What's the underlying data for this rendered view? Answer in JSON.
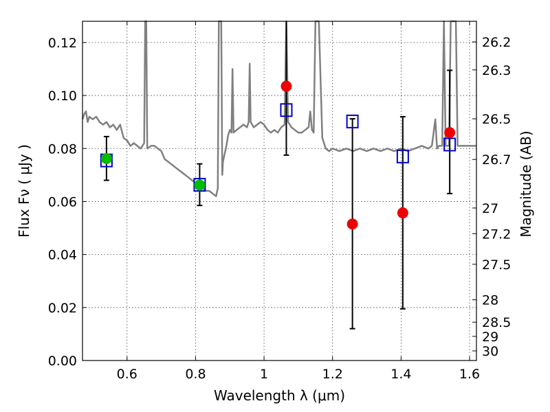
{
  "chart_data": {
    "type": "scatter",
    "xlabel": "Wavelength  λ (μm)",
    "ylabel": "Flux  Fν  ( μJy )",
    "y2label": "Magnitude (AB)",
    "xlim": [
      0.47,
      1.62
    ],
    "ylim": [
      0.0,
      0.128
    ],
    "xticks": [
      "0.6",
      "0.8",
      "1",
      "1.2",
      "1.4",
      "1.6"
    ],
    "xtick_values": [
      0.6,
      0.8,
      1.0,
      1.2,
      1.4,
      1.6
    ],
    "yticks": [
      "0.00",
      "0.02",
      "0.04",
      "0.06",
      "0.08",
      "0.10",
      "0.12"
    ],
    "ytick_values": [
      0.0,
      0.02,
      0.04,
      0.06,
      0.08,
      0.1,
      0.12
    ],
    "mag_ticks": [
      "26.2",
      "26.3",
      "26.5",
      "26.7",
      "27",
      "27.2",
      "27.5",
      "28",
      "28.5",
      "29",
      "30"
    ],
    "mag_tick_values": [
      26.2,
      26.3,
      26.5,
      26.7,
      27.0,
      27.2,
      27.5,
      28.0,
      28.5,
      29.0,
      30.0
    ],
    "grid": true,
    "colors": {
      "sed": "#808080",
      "model": "#0000cc",
      "detection": "#00bb00",
      "upper": "#ee0000",
      "errorbar": "#000000"
    },
    "model_template": [
      [
        0.47,
        0.091
      ],
      [
        0.475,
        0.093
      ],
      [
        0.48,
        0.094
      ],
      [
        0.485,
        0.09
      ],
      [
        0.49,
        0.092
      ],
      [
        0.5,
        0.091
      ],
      [
        0.51,
        0.092
      ],
      [
        0.52,
        0.09
      ],
      [
        0.53,
        0.089
      ],
      [
        0.54,
        0.09
      ],
      [
        0.55,
        0.088
      ],
      [
        0.56,
        0.089
      ],
      [
        0.57,
        0.087
      ],
      [
        0.58,
        0.089
      ],
      [
        0.59,
        0.084
      ],
      [
        0.6,
        0.083
      ],
      [
        0.61,
        0.081
      ],
      [
        0.62,
        0.082
      ],
      [
        0.63,
        0.081
      ],
      [
        0.64,
        0.08
      ],
      [
        0.65,
        0.082
      ],
      [
        0.653,
        0.128
      ],
      [
        0.656,
        0.128
      ],
      [
        0.659,
        0.08
      ],
      [
        0.67,
        0.081
      ],
      [
        0.68,
        0.081
      ],
      [
        0.69,
        0.08
      ],
      [
        0.7,
        0.079
      ],
      [
        0.71,
        0.076
      ],
      [
        0.72,
        0.075
      ],
      [
        0.73,
        0.074
      ],
      [
        0.74,
        0.073
      ],
      [
        0.75,
        0.072
      ],
      [
        0.76,
        0.071
      ],
      [
        0.77,
        0.07
      ],
      [
        0.78,
        0.069
      ],
      [
        0.79,
        0.068
      ],
      [
        0.8,
        0.067
      ],
      [
        0.81,
        0.066
      ],
      [
        0.82,
        0.065
      ],
      [
        0.83,
        0.064
      ],
      [
        0.84,
        0.064
      ],
      [
        0.85,
        0.063
      ],
      [
        0.86,
        0.062
      ],
      [
        0.865,
        0.065
      ],
      [
        0.868,
        0.128
      ],
      [
        0.875,
        0.128
      ],
      [
        0.878,
        0.07
      ],
      [
        0.88,
        0.075
      ],
      [
        0.89,
        0.081
      ],
      [
        0.895,
        0.085
      ],
      [
        0.9,
        0.087
      ],
      [
        0.905,
        0.086
      ],
      [
        0.908,
        0.11
      ],
      [
        0.911,
        0.086
      ],
      [
        0.92,
        0.087
      ],
      [
        0.93,
        0.088
      ],
      [
        0.94,
        0.089
      ],
      [
        0.95,
        0.088
      ],
      [
        0.955,
        0.09
      ],
      [
        0.958,
        0.112
      ],
      [
        0.961,
        0.09
      ],
      [
        0.97,
        0.088
      ],
      [
        0.98,
        0.089
      ],
      [
        0.99,
        0.09
      ],
      [
        1.0,
        0.089
      ],
      [
        1.01,
        0.087
      ],
      [
        1.02,
        0.086
      ],
      [
        1.03,
        0.087
      ],
      [
        1.04,
        0.086
      ],
      [
        1.05,
        0.088
      ],
      [
        1.06,
        0.089
      ],
      [
        1.065,
        0.128
      ],
      [
        1.07,
        0.09
      ],
      [
        1.08,
        0.088
      ],
      [
        1.09,
        0.087
      ],
      [
        1.1,
        0.086
      ],
      [
        1.11,
        0.086
      ],
      [
        1.12,
        0.087
      ],
      [
        1.13,
        0.088
      ],
      [
        1.135,
        0.094
      ],
      [
        1.14,
        0.087
      ],
      [
        1.145,
        0.086
      ],
      [
        1.15,
        0.128
      ],
      [
        1.16,
        0.128
      ],
      [
        1.17,
        0.084
      ],
      [
        1.18,
        0.08
      ],
      [
        1.19,
        0.079
      ],
      [
        1.2,
        0.08
      ],
      [
        1.22,
        0.079
      ],
      [
        1.24,
        0.08
      ],
      [
        1.26,
        0.079
      ],
      [
        1.28,
        0.08
      ],
      [
        1.3,
        0.079
      ],
      [
        1.32,
        0.08
      ],
      [
        1.34,
        0.079
      ],
      [
        1.36,
        0.08
      ],
      [
        1.38,
        0.079
      ],
      [
        1.4,
        0.08
      ],
      [
        1.42,
        0.079
      ],
      [
        1.44,
        0.08
      ],
      [
        1.46,
        0.081
      ],
      [
        1.48,
        0.08
      ],
      [
        1.49,
        0.081
      ],
      [
        1.5,
        0.091
      ],
      [
        1.505,
        0.08
      ],
      [
        1.51,
        0.081
      ],
      [
        1.52,
        0.081
      ],
      [
        1.525,
        0.128
      ],
      [
        1.53,
        0.081
      ],
      [
        1.54,
        0.081
      ],
      [
        1.545,
        0.128
      ],
      [
        1.55,
        0.128
      ],
      [
        1.56,
        0.128
      ],
      [
        1.565,
        0.081
      ],
      [
        1.58,
        0.081
      ],
      [
        1.6,
        0.081
      ],
      [
        1.62,
        0.081
      ]
    ],
    "model_photometry": [
      {
        "x": 0.54,
        "y": 0.0755
      },
      {
        "x": 0.812,
        "y": 0.0663
      },
      {
        "x": 1.065,
        "y": 0.0945
      },
      {
        "x": 1.258,
        "y": 0.0902
      },
      {
        "x": 1.405,
        "y": 0.077
      },
      {
        "x": 1.542,
        "y": 0.0815
      }
    ],
    "observed": [
      {
        "x": 0.54,
        "y": 0.0762,
        "err_low": 0.068,
        "err_high": 0.0845,
        "status": "detection"
      },
      {
        "x": 0.812,
        "y": 0.0662,
        "err_low": 0.0585,
        "err_high": 0.0742,
        "status": "detection"
      },
      {
        "x": 1.065,
        "y": 0.1035,
        "err_low": 0.0775,
        "err_high": 0.129,
        "status": "upper"
      },
      {
        "x": 1.258,
        "y": 0.0515,
        "err_low": 0.012,
        "err_high": 0.0912,
        "status": "upper"
      },
      {
        "x": 1.405,
        "y": 0.0557,
        "err_low": 0.0195,
        "err_high": 0.092,
        "status": "upper"
      },
      {
        "x": 1.542,
        "y": 0.086,
        "err_low": 0.063,
        "err_high": 0.1095,
        "status": "upper"
      }
    ]
  }
}
